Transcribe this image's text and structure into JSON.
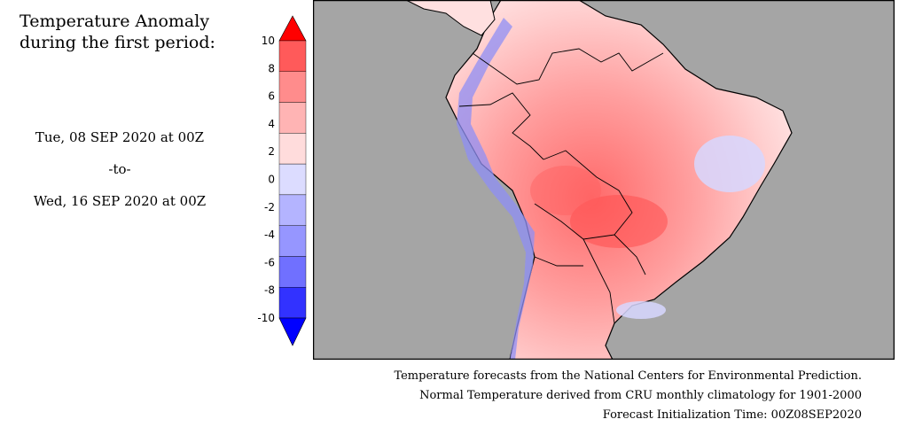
{
  "title": {
    "line1": "Temperature Anomaly",
    "line2": "during the first period:"
  },
  "period": {
    "start": "Tue, 08 SEP 2020 at 00Z",
    "separator": "-to-",
    "end": "Wed, 16 SEP 2020 at 00Z"
  },
  "color_scale": {
    "labels": [
      "10",
      "8",
      "6",
      "4",
      "2",
      "0",
      "-2",
      "-4",
      "-6",
      "-8",
      "-10"
    ],
    "colors": [
      "#ff0000",
      "#ff5a5a",
      "#ff8c8c",
      "#ffb4b4",
      "#ffdcdc",
      "#dcdcff",
      "#b4b4ff",
      "#9696ff",
      "#7070ff",
      "#3232ff",
      "#0000ff"
    ]
  },
  "map": {
    "ocean_color": "#a5a5a5",
    "border_color": "#000000"
  },
  "credits": {
    "line1": "Temperature forecasts from the National Centers for Environmental Prediction.",
    "line2": "Normal Temperature derived from CRU monthly climatology for 1901-2000",
    "line3": "Forecast Initialization Time: 00Z08SEP2020"
  }
}
